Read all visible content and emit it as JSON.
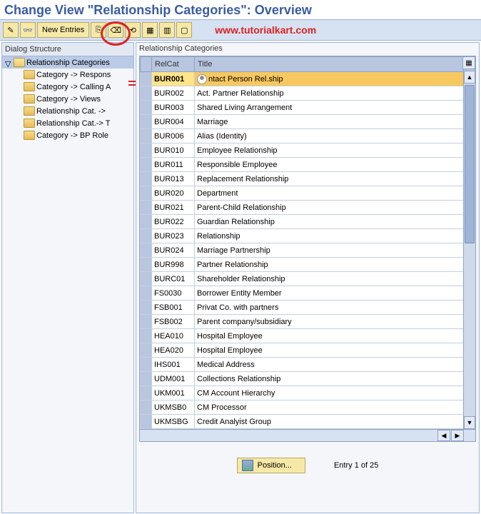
{
  "title": "Change View \"Relationship Categories\": Overview",
  "watermark": "www.tutorialkart.com",
  "toolbar": {
    "new_entries_label": "New Entries",
    "icons": [
      "toggle",
      "glasses",
      "copy",
      "delete",
      "undo",
      "select-all",
      "block",
      "deselect"
    ]
  },
  "colors": {
    "accent": "#3a5ca0",
    "toolbar_bg": "#d6e1f1",
    "button_bg": "#f6e9a8",
    "highlight": "#f6c85f",
    "red": "#d22"
  },
  "dialog_structure": {
    "header": "Dialog Structure",
    "root": {
      "label": "Relationship Categories",
      "open": true,
      "selected": true
    },
    "children": [
      "Category -> Respons",
      "Category -> Calling A",
      "Category -> Views",
      "Relationship Cat. -> ",
      "Relationship Cat.-> T",
      "Category -> BP Role"
    ]
  },
  "grid": {
    "panel_title": "Relationship Categories",
    "columns": {
      "relcat": "RelCat",
      "title": "Title"
    },
    "highlight_index": 0,
    "rows": [
      {
        "relcat": "BUR001",
        "title": "ntact Person Rel.ship",
        "has_icon": true
      },
      {
        "relcat": "BUR002",
        "title": "Act. Partner Relationship"
      },
      {
        "relcat": "BUR003",
        "title": "Shared Living Arrangement"
      },
      {
        "relcat": "BUR004",
        "title": "Marriage"
      },
      {
        "relcat": "BUR006",
        "title": "Alias (Identity)"
      },
      {
        "relcat": "BUR010",
        "title": "Employee Relationship"
      },
      {
        "relcat": "BUR011",
        "title": "Responsible Employee"
      },
      {
        "relcat": "BUR013",
        "title": "Replacement Relationship"
      },
      {
        "relcat": "BUR020",
        "title": "Department"
      },
      {
        "relcat": "BUR021",
        "title": "Parent-Child Relationship"
      },
      {
        "relcat": "BUR022",
        "title": "Guardian Relationship"
      },
      {
        "relcat": "BUR023",
        "title": "Relationship"
      },
      {
        "relcat": "BUR024",
        "title": "Marriage Partnership"
      },
      {
        "relcat": "BUR998",
        "title": "Partner Relationship"
      },
      {
        "relcat": "BURC01",
        "title": "Shareholder Relationship"
      },
      {
        "relcat": "FS0030",
        "title": "Borrower Entity Member"
      },
      {
        "relcat": "FSB001",
        "title": "Privat Co. with partners"
      },
      {
        "relcat": "FSB002",
        "title": "Parent company/subsidiary"
      },
      {
        "relcat": "HEA010",
        "title": "Hospital Employee"
      },
      {
        "relcat": "HEA020",
        "title": "Hospital Employee"
      },
      {
        "relcat": "IHS001",
        "title": "Medical Address"
      },
      {
        "relcat": "UDM001",
        "title": "Collections Relationship"
      },
      {
        "relcat": "UKM001",
        "title": "CM Account Hierarchy"
      },
      {
        "relcat": "UKMSB0",
        "title": "CM Processor"
      },
      {
        "relcat": "UKMSBG",
        "title": "Credit Analyist Group"
      }
    ]
  },
  "footer": {
    "position_label": "Position...",
    "entry_text": "Entry 1 of 25"
  }
}
